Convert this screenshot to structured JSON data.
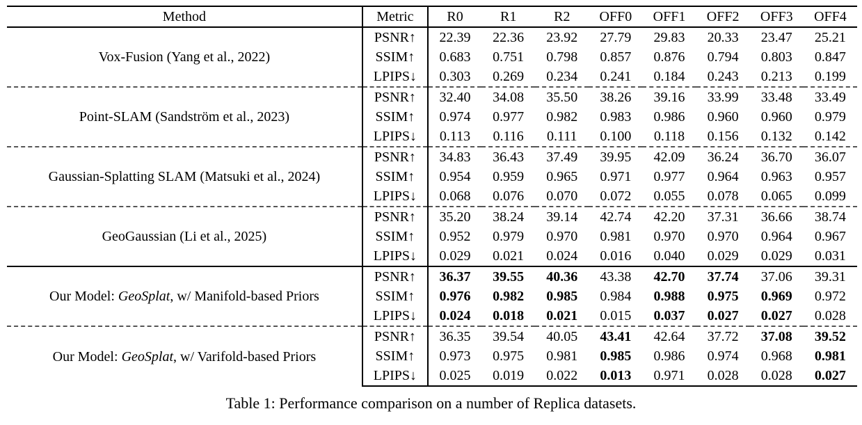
{
  "table": {
    "caption": "Table 1: Performance comparison on a number of Replica datasets.",
    "columns": [
      "Method",
      "Metric",
      "R0",
      "R1",
      "R2",
      "OFF0",
      "OFF1",
      "OFF2",
      "OFF3",
      "OFF4"
    ],
    "groups": [
      {
        "separator": "none",
        "method_parts": [
          {
            "t": "Vox-Fusion (Yang et al., 2022)"
          }
        ],
        "rows": [
          {
            "metric": "PSNR↑",
            "values": [
              "22.39",
              "22.36",
              "23.92",
              "27.79",
              "29.83",
              "20.33",
              "23.47",
              "25.21"
            ],
            "bold": [
              0,
              0,
              0,
              0,
              0,
              0,
              0,
              0
            ]
          },
          {
            "metric": "SSIM↑",
            "values": [
              "0.683",
              "0.751",
              "0.798",
              "0.857",
              "0.876",
              "0.794",
              "0.803",
              "0.847"
            ],
            "bold": [
              0,
              0,
              0,
              0,
              0,
              0,
              0,
              0
            ]
          },
          {
            "metric": "LPIPS↓",
            "values": [
              "0.303",
              "0.269",
              "0.234",
              "0.241",
              "0.184",
              "0.243",
              "0.213",
              "0.199"
            ],
            "bold": [
              0,
              0,
              0,
              0,
              0,
              0,
              0,
              0
            ]
          }
        ]
      },
      {
        "separator": "dashed",
        "method_parts": [
          {
            "t": "Point-SLAM (Sandström et al., 2023)"
          }
        ],
        "rows": [
          {
            "metric": "PSNR↑",
            "values": [
              "32.40",
              "34.08",
              "35.50",
              "38.26",
              "39.16",
              "33.99",
              "33.48",
              "33.49"
            ],
            "bold": [
              0,
              0,
              0,
              0,
              0,
              0,
              0,
              0
            ]
          },
          {
            "metric": "SSIM↑",
            "values": [
              "0.974",
              "0.977",
              "0.982",
              "0.983",
              "0.986",
              "0.960",
              "0.960",
              "0.979"
            ],
            "bold": [
              0,
              0,
              0,
              0,
              0,
              0,
              0,
              0
            ]
          },
          {
            "metric": "LPIPS↓",
            "values": [
              "0.113",
              "0.116",
              "0.111",
              "0.100",
              "0.118",
              "0.156",
              "0.132",
              "0.142"
            ],
            "bold": [
              0,
              0,
              0,
              0,
              0,
              0,
              0,
              0
            ]
          }
        ]
      },
      {
        "separator": "dashed",
        "method_parts": [
          {
            "t": "Gaussian-Splatting SLAM (Matsuki et al., 2024)"
          }
        ],
        "rows": [
          {
            "metric": "PSNR↑",
            "values": [
              "34.83",
              "36.43",
              "37.49",
              "39.95",
              "42.09",
              "36.24",
              "36.70",
              "36.07"
            ],
            "bold": [
              0,
              0,
              0,
              0,
              0,
              0,
              0,
              0
            ]
          },
          {
            "metric": "SSIM↑",
            "values": [
              "0.954",
              "0.959",
              "0.965",
              "0.971",
              "0.977",
              "0.964",
              "0.963",
              "0.957"
            ],
            "bold": [
              0,
              0,
              0,
              0,
              0,
              0,
              0,
              0
            ]
          },
          {
            "metric": "LPIPS↓",
            "values": [
              "0.068",
              "0.076",
              "0.070",
              "0.072",
              "0.055",
              "0.078",
              "0.065",
              "0.099"
            ],
            "bold": [
              0,
              0,
              0,
              0,
              0,
              0,
              0,
              0
            ]
          }
        ]
      },
      {
        "separator": "dashed",
        "method_parts": [
          {
            "t": "GeoGaussian (Li et al., 2025)"
          }
        ],
        "rows": [
          {
            "metric": "PSNR↑",
            "values": [
              "35.20",
              "38.24",
              "39.14",
              "42.74",
              "42.20",
              "37.31",
              "36.66",
              "38.74"
            ],
            "bold": [
              0,
              0,
              0,
              0,
              0,
              0,
              0,
              0
            ]
          },
          {
            "metric": "SSIM↑",
            "values": [
              "0.952",
              "0.979",
              "0.970",
              "0.981",
              "0.970",
              "0.970",
              "0.964",
              "0.967"
            ],
            "bold": [
              0,
              0,
              0,
              0,
              0,
              0,
              0,
              0
            ]
          },
          {
            "metric": "LPIPS↓",
            "values": [
              "0.029",
              "0.021",
              "0.024",
              "0.016",
              "0.040",
              "0.029",
              "0.029",
              "0.031"
            ],
            "bold": [
              0,
              0,
              0,
              0,
              0,
              0,
              0,
              0
            ]
          }
        ]
      },
      {
        "separator": "solid",
        "method_parts": [
          {
            "t": "Our Model: "
          },
          {
            "t": "GeoSplat",
            "i": true
          },
          {
            "t": ", w/ Manifold-based Priors"
          }
        ],
        "rows": [
          {
            "metric": "PSNR↑",
            "values": [
              "36.37",
              "39.55",
              "40.36",
              "43.38",
              "42.70",
              "37.74",
              "37.06",
              "39.31"
            ],
            "bold": [
              1,
              1,
              1,
              0,
              1,
              1,
              0,
              0
            ]
          },
          {
            "metric": "SSIM↑",
            "values": [
              "0.976",
              "0.982",
              "0.985",
              "0.984",
              "0.988",
              "0.975",
              "0.969",
              "0.972"
            ],
            "bold": [
              1,
              1,
              1,
              0,
              1,
              1,
              1,
              0
            ]
          },
          {
            "metric": "LPIPS↓",
            "values": [
              "0.024",
              "0.018",
              "0.021",
              "0.015",
              "0.037",
              "0.027",
              "0.027",
              "0.028"
            ],
            "bold": [
              1,
              1,
              1,
              0,
              1,
              1,
              1,
              0
            ]
          }
        ]
      },
      {
        "separator": "dashed",
        "method_parts": [
          {
            "t": "Our Model: "
          },
          {
            "t": "GeoSplat",
            "i": true
          },
          {
            "t": ", w/ Varifold-based Priors"
          }
        ],
        "rows": [
          {
            "metric": "PSNR↑",
            "values": [
              "36.35",
              "39.54",
              "40.05",
              "43.41",
              "42.64",
              "37.72",
              "37.08",
              "39.52"
            ],
            "bold": [
              0,
              0,
              0,
              1,
              0,
              0,
              1,
              1
            ]
          },
          {
            "metric": "SSIM↑",
            "values": [
              "0.973",
              "0.975",
              "0.981",
              "0.985",
              "0.986",
              "0.974",
              "0.968",
              "0.981"
            ],
            "bold": [
              0,
              0,
              0,
              1,
              0,
              0,
              0,
              1
            ]
          },
          {
            "metric": "LPIPS↓",
            "values": [
              "0.025",
              "0.019",
              "0.022",
              "0.013",
              "0.971",
              "0.028",
              "0.028",
              "0.027"
            ],
            "bold": [
              0,
              0,
              0,
              1,
              0,
              0,
              0,
              1
            ]
          }
        ]
      }
    ]
  }
}
